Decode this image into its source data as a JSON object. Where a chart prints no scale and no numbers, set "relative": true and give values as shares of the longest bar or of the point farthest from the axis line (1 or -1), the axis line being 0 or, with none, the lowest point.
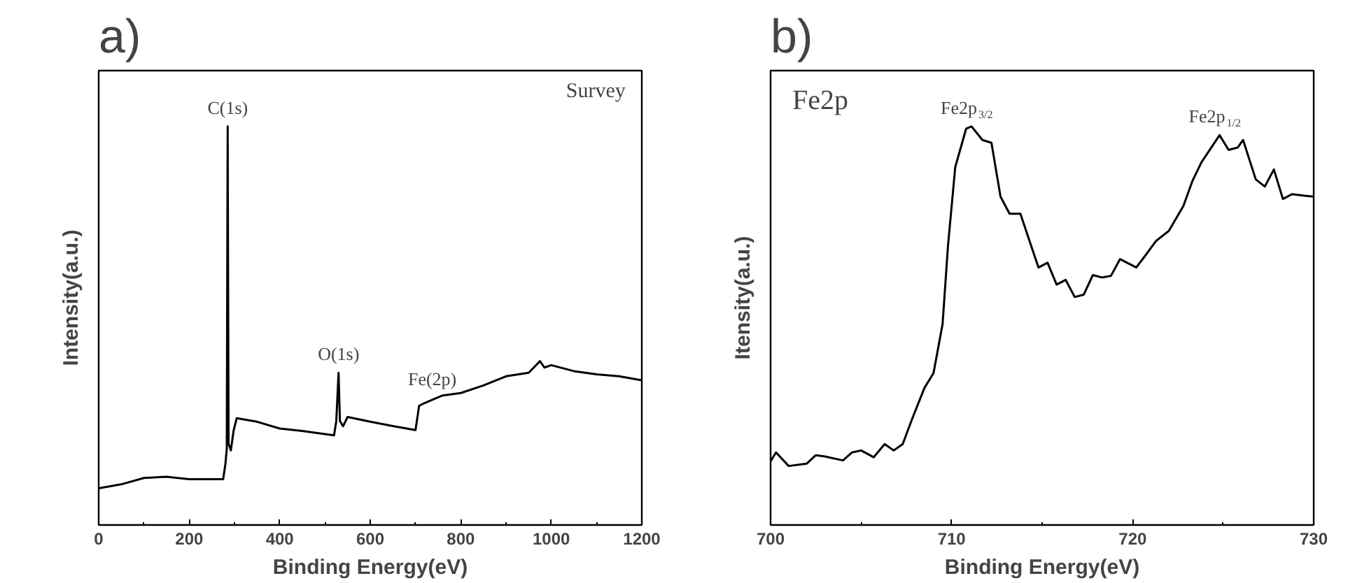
{
  "chart_data": [
    {
      "type": "line",
      "title": "a)",
      "xlabel": "Binding Energy(eV)",
      "ylabel": "Intensity(a.u.)",
      "relative": true,
      "tick_labels": "x",
      "grid": false,
      "xlim": [
        0,
        1200
      ],
      "xticks": [
        0,
        200,
        400,
        600,
        800,
        1000,
        {
          "value": 1200,
          "label": "1200"
        }
      ],
      "x": [
        0,
        50,
        100,
        150,
        200,
        275,
        280,
        283,
        285,
        287,
        292,
        298,
        305,
        350,
        400,
        450,
        520,
        525,
        530,
        533,
        540,
        550,
        600,
        650,
        700,
        708,
        720,
        760,
        800,
        850,
        900,
        950,
        975,
        985,
        1000,
        1050,
        1100,
        1150,
        1200
      ],
      "series": [
        {
          "color": "#000000",
          "values": [
            0.092,
            0.102,
            0.118,
            0.121,
            0.115,
            0.115,
            0.153,
            0.191,
            1.0,
            0.204,
            0.187,
            0.236,
            0.268,
            0.259,
            0.242,
            0.236,
            0.225,
            0.261,
            0.382,
            0.261,
            0.248,
            0.271,
            0.259,
            0.248,
            0.238,
            0.299,
            0.306,
            0.325,
            0.331,
            0.35,
            0.373,
            0.382,
            0.411,
            0.395,
            0.401,
            0.386,
            0.378,
            0.373,
            0.363
          ]
        }
      ],
      "annotations": [
        {
          "text": "C(1s)",
          "x": 285,
          "y": 1.0
        },
        {
          "text": "O(1s)",
          "x": 530,
          "y": 0.382
        },
        {
          "text": "Fe(2p)",
          "x": 737,
          "y": 0.32
        },
        "Survey"
      ]
    },
    {
      "type": "line",
      "title": "b)",
      "xlabel": "Binding Energy(eV)",
      "ylabel": "Itensity(a.u.)",
      "relative": true,
      "tick_labels": "x",
      "grid": false,
      "xlim": [
        700,
        730
      ],
      "xticks": [
        700,
        710,
        720,
        730
      ],
      "x": [
        700,
        700.3,
        701,
        702,
        702.5,
        703,
        704,
        704.5,
        705,
        705.7,
        706.3,
        706.8,
        707.3,
        707.8,
        708.5,
        709,
        709.5,
        709.8,
        710.2,
        710.8,
        711.1,
        711.7,
        712.2,
        712.7,
        713.2,
        713.8,
        714.3,
        714.8,
        715.3,
        715.8,
        716.3,
        716.8,
        717.3,
        717.8,
        718.3,
        718.8,
        719.3,
        720.2,
        720.6,
        721.3,
        722,
        722.8,
        723.3,
        723.8,
        724.8,
        725.3,
        725.8,
        726.1,
        726.8,
        727.3,
        727.8,
        728.3,
        728.8,
        729.5,
        730
      ],
      "series": [
        {
          "color": "#000000",
          "values": [
            0.16,
            0.182,
            0.148,
            0.154,
            0.175,
            0.172,
            0.162,
            0.182,
            0.187,
            0.17,
            0.203,
            0.187,
            0.203,
            0.264,
            0.344,
            0.381,
            0.504,
            0.701,
            0.898,
            0.994,
            1.0,
            0.966,
            0.959,
            0.824,
            0.781,
            0.781,
            0.713,
            0.646,
            0.658,
            0.603,
            0.615,
            0.572,
            0.578,
            0.627,
            0.621,
            0.625,
            0.667,
            0.646,
            0.67,
            0.713,
            0.738,
            0.8,
            0.863,
            0.91,
            0.978,
            0.941,
            0.947,
            0.966,
            0.867,
            0.849,
            0.892,
            0.818,
            0.83,
            0.826,
            0.824
          ]
        }
      ],
      "annotations": [
        "Fe2p",
        {
          "text": "Fe2p$_{3/2}$",
          "x": 711.1,
          "y": 1.0
        },
        {
          "text": "Fe2p$_{1/2}$",
          "x": 724.8,
          "y": 0.978
        }
      ]
    }
  ]
}
